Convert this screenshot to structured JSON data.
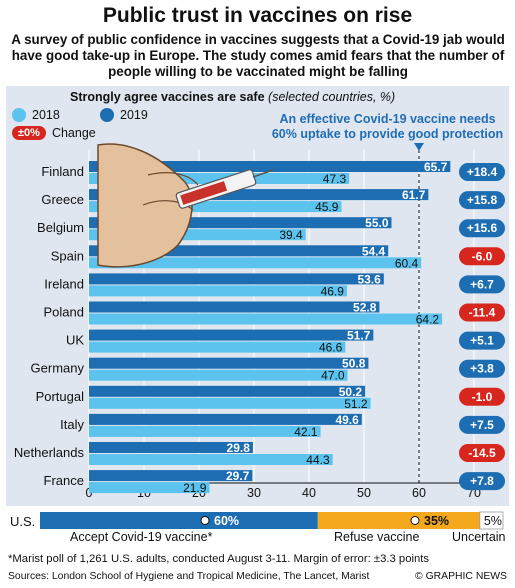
{
  "title": "Public trust in vaccines on rise",
  "subtitle": "A survey of public confidence in vaccines suggests that a Covid-19 jab would have good take-up in Europe. The study comes amid fears that the number of people willing to be vaccinated might be falling",
  "legend": {
    "y2018": "2018",
    "y2019": "2019",
    "change_pill": "±0%",
    "change_label": "Change"
  },
  "annotation": "An effective Covid-19 vaccine needs 60% uptake to provide good protection",
  "colors": {
    "y2018": "#5bc3ee",
    "y2019": "#1d6db3",
    "up": "#1d6db3",
    "down": "#d7261e",
    "accept": "#1d6db3",
    "refuse": "#f5a81c",
    "uncertain": "#ffffff",
    "panel": "#dfe6ef"
  },
  "chart_data": {
    "type": "bar",
    "title": "Strongly agree vaccines are safe",
    "title_note": "(selected countries, %)",
    "categories": [
      "Finland",
      "Greece",
      "Belgium",
      "Spain",
      "Ireland",
      "Poland",
      "UK",
      "Germany",
      "Portugal",
      "Italy",
      "Netherlands",
      "France"
    ],
    "series": [
      {
        "name": "2018",
        "values": [
          47.3,
          45.9,
          39.4,
          60.4,
          46.9,
          64.2,
          46.6,
          47.0,
          51.2,
          42.1,
          44.3,
          21.9
        ]
      },
      {
        "name": "2019",
        "values": [
          65.7,
          61.7,
          55.0,
          54.4,
          53.6,
          52.8,
          51.7,
          50.8,
          50.2,
          49.6,
          29.8,
          29.7
        ]
      }
    ],
    "change_labels": [
      "+18.4",
      "+15.8",
      "+15.6",
      "-6.0",
      "+6.7",
      "-11.4",
      "+5.1",
      "+3.8",
      "-1.0",
      "+7.5",
      "-14.5",
      "+7.8"
    ],
    "threshold": 60,
    "xticks": [
      0,
      10,
      20,
      30,
      40,
      50,
      60,
      70
    ],
    "xlim": [
      0,
      70
    ],
    "us": {
      "label": "U.S.",
      "accept": {
        "value": 60,
        "label": "60%",
        "caption": "Accept Covid-19 vaccine*"
      },
      "refuse": {
        "value": 35,
        "label": "35%",
        "caption": "Refuse vaccine"
      },
      "uncertain": {
        "value": 5,
        "label": "5%",
        "caption": "Uncertain"
      }
    }
  },
  "footnote": "*Marist poll of 1,261 U.S. adults, conducted August 3-11. Margin of error: ±3.3 points",
  "sources": "Sources: London School of Hygiene and Tropical Medicine, The Lancet, Marist",
  "credit": "© GRAPHIC NEWS"
}
